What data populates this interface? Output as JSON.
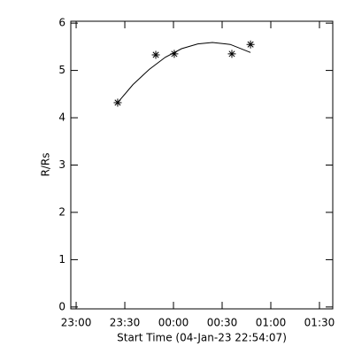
{
  "chart_data": {
    "type": "scatter",
    "xlabel": "Start Time (04-Jan-23 22:54:07)",
    "ylabel": "R/Rs",
    "xlim": [
      -3.3,
      158.2
    ],
    "ylim": [
      -0.04,
      6.04
    ],
    "xticks": [
      {
        "value": 0,
        "label": "23:00"
      },
      {
        "value": 30,
        "label": "23:30"
      },
      {
        "value": 60,
        "label": "00:00"
      },
      {
        "value": 90,
        "label": "00:30"
      },
      {
        "value": 120,
        "label": "01:00"
      },
      {
        "value": 150,
        "label": "01:30"
      }
    ],
    "yticks": [
      0,
      1,
      2,
      3,
      4,
      5,
      6
    ],
    "series": [
      {
        "style": "markers",
        "color": "#000000",
        "x": [
          25.6,
          49.1,
          60.5,
          96,
          107.5
        ],
        "values": [
          4.32,
          5.33,
          5.35,
          5.35,
          5.55
        ]
      },
      {
        "style": "line",
        "color": "#000000",
        "x": [
          25.6,
          35,
          45,
          55,
          65,
          75,
          84,
          95,
          107.5
        ],
        "values": [
          4.32,
          4.7,
          5.02,
          5.28,
          5.46,
          5.56,
          5.59,
          5.55,
          5.38
        ]
      }
    ]
  }
}
